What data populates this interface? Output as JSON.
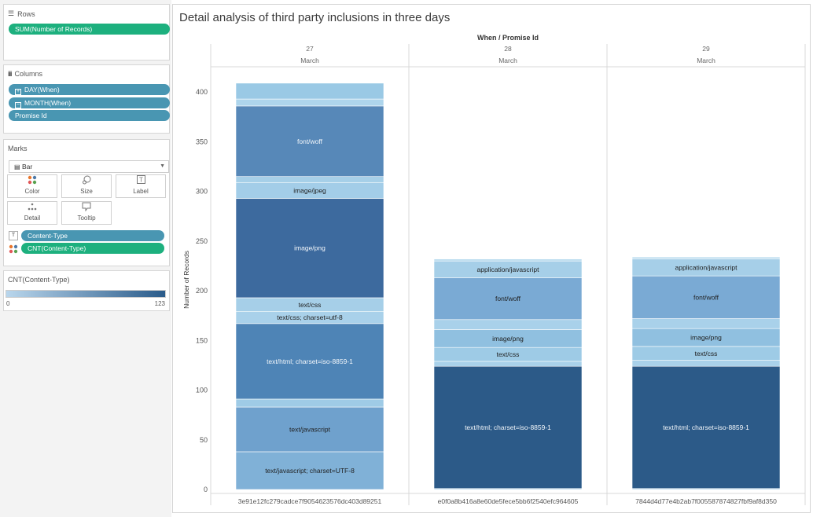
{
  "shelves": {
    "rows": {
      "title": "Rows",
      "pills": [
        "SUM(Number of Records)"
      ]
    },
    "columns": {
      "title": "Columns",
      "pills": [
        "DAY(When)",
        "MONTH(When)",
        "Promise Id"
      ]
    }
  },
  "marks": {
    "title": "Marks",
    "mark_type": "Bar",
    "buttons": [
      {
        "label": "Color",
        "icon": "color-dots-icon"
      },
      {
        "label": "Size",
        "icon": "size-icon"
      },
      {
        "label": "Label",
        "icon": "label-icon"
      },
      {
        "label": "Detail",
        "icon": "detail-icon"
      },
      {
        "label": "Tooltip",
        "icon": "tooltip-icon"
      }
    ],
    "fields": [
      "Content-Type",
      "CNT(Content-Type)"
    ]
  },
  "color_legend": {
    "title": "CNT(Content-Type)",
    "min": "0",
    "max": "123",
    "color_low": "#b9d6ec",
    "color_high": "#2a5b8a"
  },
  "chart_data": {
    "type": "bar",
    "title": "Detail analysis of third party inclusions in three days",
    "header_title": "When / Promise Id",
    "ylabel": "Number of Records",
    "ylim": [
      0,
      430
    ],
    "yticks": [
      0,
      50,
      100,
      150,
      200,
      250,
      300,
      350,
      400
    ],
    "panes": [
      {
        "day": "27",
        "month": "March",
        "promise_id": "3e91e12fc279cadce7f9054623576dc403d89251",
        "segments": [
          {
            "name": "text/javascript; charset=UTF-8",
            "value": 38,
            "color": "#80b1d7",
            "label": true
          },
          {
            "name": "text/javascript",
            "value": 45,
            "color": "#6fa1cd",
            "label": true
          },
          {
            "name": "",
            "value": 8,
            "color": "#9fcbe6",
            "label": false
          },
          {
            "name": "text/html; charset=iso-8859-1",
            "value": 76,
            "color": "#4e84b6",
            "label": true
          },
          {
            "name": "text/css; charset=utf-8",
            "value": 12,
            "color": "#a9d1ea",
            "label": true
          },
          {
            "name": "text/css",
            "value": 14,
            "color": "#a6cfe8",
            "label": true
          },
          {
            "name": "image/png",
            "value": 100,
            "color": "#3d6a9e",
            "label": true
          },
          {
            "name": "image/jpeg",
            "value": 16,
            "color": "#a3cde8",
            "label": true
          },
          {
            "name": "",
            "value": 6,
            "color": "#a6cfe8",
            "label": false
          },
          {
            "name": "font/woff",
            "value": 71,
            "color": "#5788b8",
            "label": true
          },
          {
            "name": "",
            "value": 7,
            "color": "#aed5ec",
            "label": false
          },
          {
            "name": "",
            "value": 16,
            "color": "#9ac9e5",
            "label": false
          }
        ]
      },
      {
        "day": "28",
        "month": "March",
        "promise_id": "e0f0a8b416a8e60de5fece5bb6f2540efc964605",
        "segments": [
          {
            "name": "",
            "value": 1,
            "color": "#a9d1ea",
            "label": false
          },
          {
            "name": "text/html; charset=iso-8859-1",
            "value": 123,
            "color": "#2c5a88",
            "label": true
          },
          {
            "name": "",
            "value": 5,
            "color": "#a9d1ea",
            "label": false
          },
          {
            "name": "text/css",
            "value": 14,
            "color": "#9ecbe6",
            "label": true
          },
          {
            "name": "image/png",
            "value": 18,
            "color": "#90c0e0",
            "label": true
          },
          {
            "name": "",
            "value": 10,
            "color": "#a9d1ea",
            "label": false
          },
          {
            "name": "font/woff",
            "value": 42,
            "color": "#7aaad4",
            "label": true
          },
          {
            "name": "application/javascript",
            "value": 17,
            "color": "#a6cfe8",
            "label": true
          },
          {
            "name": "",
            "value": 2,
            "color": "#b9dbee",
            "label": false
          }
        ]
      },
      {
        "day": "29",
        "month": "March",
        "promise_id": "7844d4d77e4b2ab7f005587874827fbf9af8d350",
        "segments": [
          {
            "name": "",
            "value": 1,
            "color": "#a9d1ea",
            "label": false
          },
          {
            "name": "text/html; charset=iso-8859-1",
            "value": 123,
            "color": "#2c5a88",
            "label": true
          },
          {
            "name": "",
            "value": 6,
            "color": "#a9d1ea",
            "label": false
          },
          {
            "name": "text/css",
            "value": 14,
            "color": "#9ecbe6",
            "label": true
          },
          {
            "name": "image/png",
            "value": 18,
            "color": "#90c0e0",
            "label": true
          },
          {
            "name": "",
            "value": 10,
            "color": "#a9d1ea",
            "label": false
          },
          {
            "name": "font/woff",
            "value": 43,
            "color": "#7aaad4",
            "label": true
          },
          {
            "name": "application/javascript",
            "value": 17,
            "color": "#a6cfe8",
            "label": true
          },
          {
            "name": "",
            "value": 2,
            "color": "#b9dbee",
            "label": false
          }
        ]
      }
    ]
  }
}
